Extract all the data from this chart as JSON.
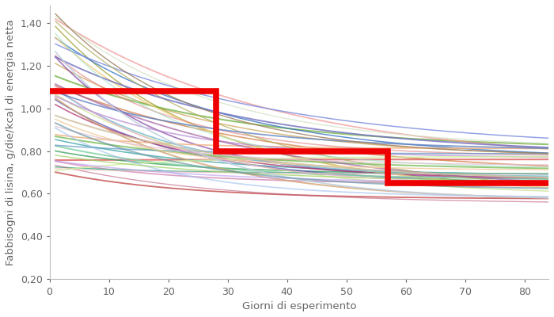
{
  "xlabel": "Giorni di esperimento",
  "ylabel": "Fabbisogni di lisina, g/die/kcal di energia netta",
  "xlim": [
    0,
    84
  ],
  "ylim": [
    0.2,
    1.48
  ],
  "yticks": [
    0.2,
    0.4,
    0.6,
    0.8,
    1.0,
    1.2,
    1.4
  ],
  "xticks": [
    0,
    10,
    20,
    30,
    40,
    50,
    60,
    70,
    80
  ],
  "step_x": [
    0,
    28,
    28,
    57,
    57,
    84
  ],
  "step_y": [
    1.08,
    1.08,
    0.8,
    0.8,
    0.65,
    0.65
  ],
  "step_color": "#EE0000",
  "step_lw": 5.5,
  "n_pigs": 45,
  "seed": 7,
  "bg_color": "#FFFFFF",
  "spine_color": "#BBBBBB",
  "tick_color": "#666666",
  "label_fontsize": 9.5,
  "tick_fontsize": 9,
  "colors": [
    "#E06060",
    "#D07030",
    "#C09030",
    "#A0A030",
    "#70B040",
    "#40A060",
    "#30A0A0",
    "#3070C0",
    "#5050B0",
    "#8040A0",
    "#B03070",
    "#C04040",
    "#F09090",
    "#F0B080",
    "#F0D080",
    "#C0E080",
    "#80D0A0",
    "#80C0D0",
    "#8090E0",
    "#B080D0",
    "#D080B0",
    "#E08080",
    "#D0A070",
    "#B0B060",
    "#80C060",
    "#50B090",
    "#5090C0",
    "#7070C0",
    "#A060A0",
    "#C06080",
    "#F0C0C0",
    "#F0D0A0",
    "#D0F0A0",
    "#A0E0C0",
    "#A0C0F0",
    "#C0A0F0",
    "#F0A0D0",
    "#D0C0A0",
    "#A0D060",
    "#6080C0",
    "#C0D0E0",
    "#E0C0D0",
    "#D0E0C0",
    "#A08060",
    "#6090A0"
  ]
}
